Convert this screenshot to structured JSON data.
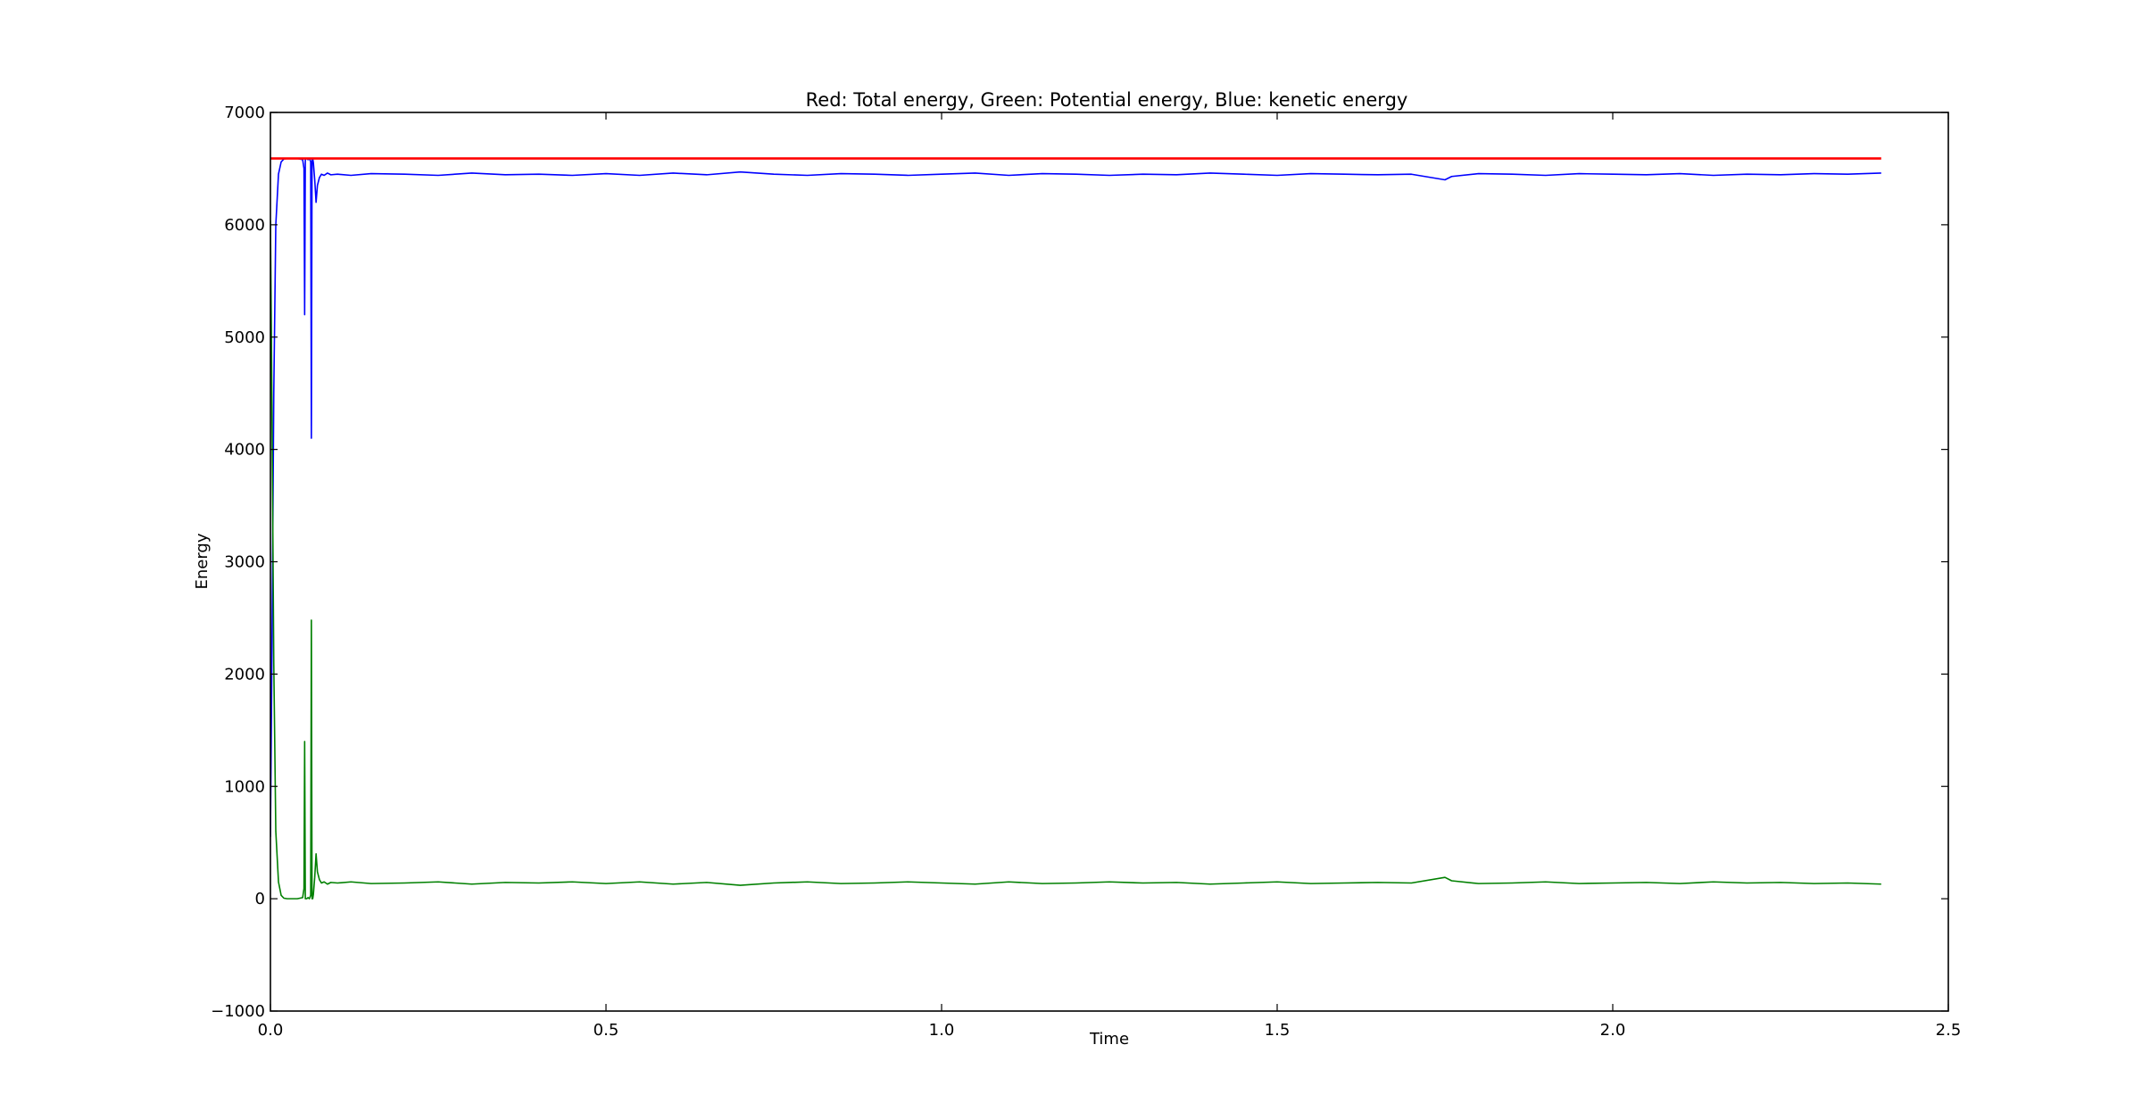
{
  "chart_data": {
    "type": "line",
    "title": "Red: Total energy, Green: Potential energy, Blue: kenetic energy",
    "xlabel": "Time",
    "ylabel": "Energy",
    "xlim": [
      0.0,
      2.5
    ],
    "ylim": [
      -1000,
      7000
    ],
    "xticks": [
      0.0,
      0.5,
      1.0,
      1.5,
      2.0,
      2.5
    ],
    "yticks": [
      -1000,
      0,
      1000,
      2000,
      3000,
      4000,
      5000,
      6000,
      7000
    ],
    "xtick_labels": [
      "0.0",
      "0.5",
      "1.0",
      "1.5",
      "2.0",
      "2.5"
    ],
    "ytick_labels": [
      "−1000",
      "0",
      "1000",
      "2000",
      "3000",
      "4000",
      "5000",
      "6000",
      "7000"
    ],
    "grid": false,
    "legend": "none",
    "series": [
      {
        "color": "#ff0000",
        "x": [
          0.0,
          2.4
        ],
        "y": [
          6590,
          6590
        ]
      },
      {
        "color": "#0000ff",
        "x": [
          0.0,
          0.002,
          0.005,
          0.008,
          0.012,
          0.016,
          0.02,
          0.025,
          0.03,
          0.04,
          0.048,
          0.05,
          0.051,
          0.052,
          0.053,
          0.054,
          0.056,
          0.058,
          0.06,
          0.061,
          0.062,
          0.063,
          0.064,
          0.066,
          0.068,
          0.07,
          0.073,
          0.076,
          0.08,
          0.085,
          0.09,
          0.1,
          0.12,
          0.15,
          0.2,
          0.25,
          0.3,
          0.35,
          0.4,
          0.45,
          0.5,
          0.55,
          0.6,
          0.65,
          0.7,
          0.75,
          0.8,
          0.85,
          0.9,
          0.95,
          1.0,
          1.05,
          1.1,
          1.15,
          1.2,
          1.25,
          1.3,
          1.35,
          1.4,
          1.45,
          1.5,
          1.55,
          1.6,
          1.65,
          1.7,
          1.75,
          1.76,
          1.8,
          1.85,
          1.9,
          1.95,
          2.0,
          2.05,
          2.1,
          2.15,
          2.2,
          2.25,
          2.3,
          2.35,
          2.4
        ],
        "y": [
          550,
          2000,
          4500,
          6000,
          6450,
          6560,
          6585,
          6590,
          6590,
          6590,
          6580,
          6500,
          5200,
          6590,
          6590,
          6590,
          6580,
          6590,
          6560,
          4100,
          6590,
          6590,
          6550,
          6400,
          6200,
          6350,
          6420,
          6450,
          6440,
          6460,
          6445,
          6450,
          6440,
          6455,
          6450,
          6440,
          6460,
          6445,
          6450,
          6440,
          6455,
          6440,
          6460,
          6445,
          6470,
          6450,
          6440,
          6455,
          6450,
          6440,
          6450,
          6460,
          6440,
          6455,
          6450,
          6440,
          6450,
          6445,
          6460,
          6450,
          6440,
          6455,
          6450,
          6445,
          6450,
          6400,
          6430,
          6455,
          6450,
          6440,
          6455,
          6450,
          6445,
          6455,
          6440,
          6450,
          6445,
          6455,
          6450,
          6460
        ]
      },
      {
        "color": "#008000",
        "x": [
          0.0,
          0.002,
          0.005,
          0.008,
          0.012,
          0.016,
          0.02,
          0.025,
          0.03,
          0.04,
          0.048,
          0.05,
          0.051,
          0.052,
          0.053,
          0.054,
          0.056,
          0.058,
          0.06,
          0.061,
          0.062,
          0.063,
          0.064,
          0.066,
          0.068,
          0.07,
          0.073,
          0.076,
          0.08,
          0.085,
          0.09,
          0.1,
          0.12,
          0.15,
          0.2,
          0.25,
          0.3,
          0.35,
          0.4,
          0.45,
          0.5,
          0.55,
          0.6,
          0.65,
          0.7,
          0.75,
          0.8,
          0.85,
          0.9,
          0.95,
          1.0,
          1.05,
          1.1,
          1.15,
          1.2,
          1.25,
          1.3,
          1.35,
          1.4,
          1.45,
          1.5,
          1.55,
          1.6,
          1.65,
          1.7,
          1.75,
          1.76,
          1.8,
          1.85,
          1.9,
          1.95,
          2.0,
          2.05,
          2.1,
          2.15,
          2.2,
          2.25,
          2.3,
          2.35,
          2.4
        ],
        "y": [
          6040,
          4600,
          2100,
          600,
          150,
          30,
          5,
          0,
          0,
          0,
          10,
          90,
          1400,
          0,
          0,
          0,
          10,
          0,
          30,
          2480,
          0,
          0,
          40,
          190,
          400,
          240,
          170,
          140,
          150,
          130,
          145,
          140,
          150,
          135,
          140,
          150,
          130,
          145,
          140,
          150,
          135,
          150,
          130,
          145,
          120,
          140,
          150,
          135,
          140,
          150,
          140,
          130,
          150,
          135,
          140,
          150,
          140,
          145,
          130,
          140,
          150,
          135,
          140,
          145,
          140,
          190,
          160,
          135,
          140,
          150,
          135,
          140,
          145,
          135,
          150,
          140,
          145,
          135,
          140,
          130
        ]
      }
    ]
  }
}
